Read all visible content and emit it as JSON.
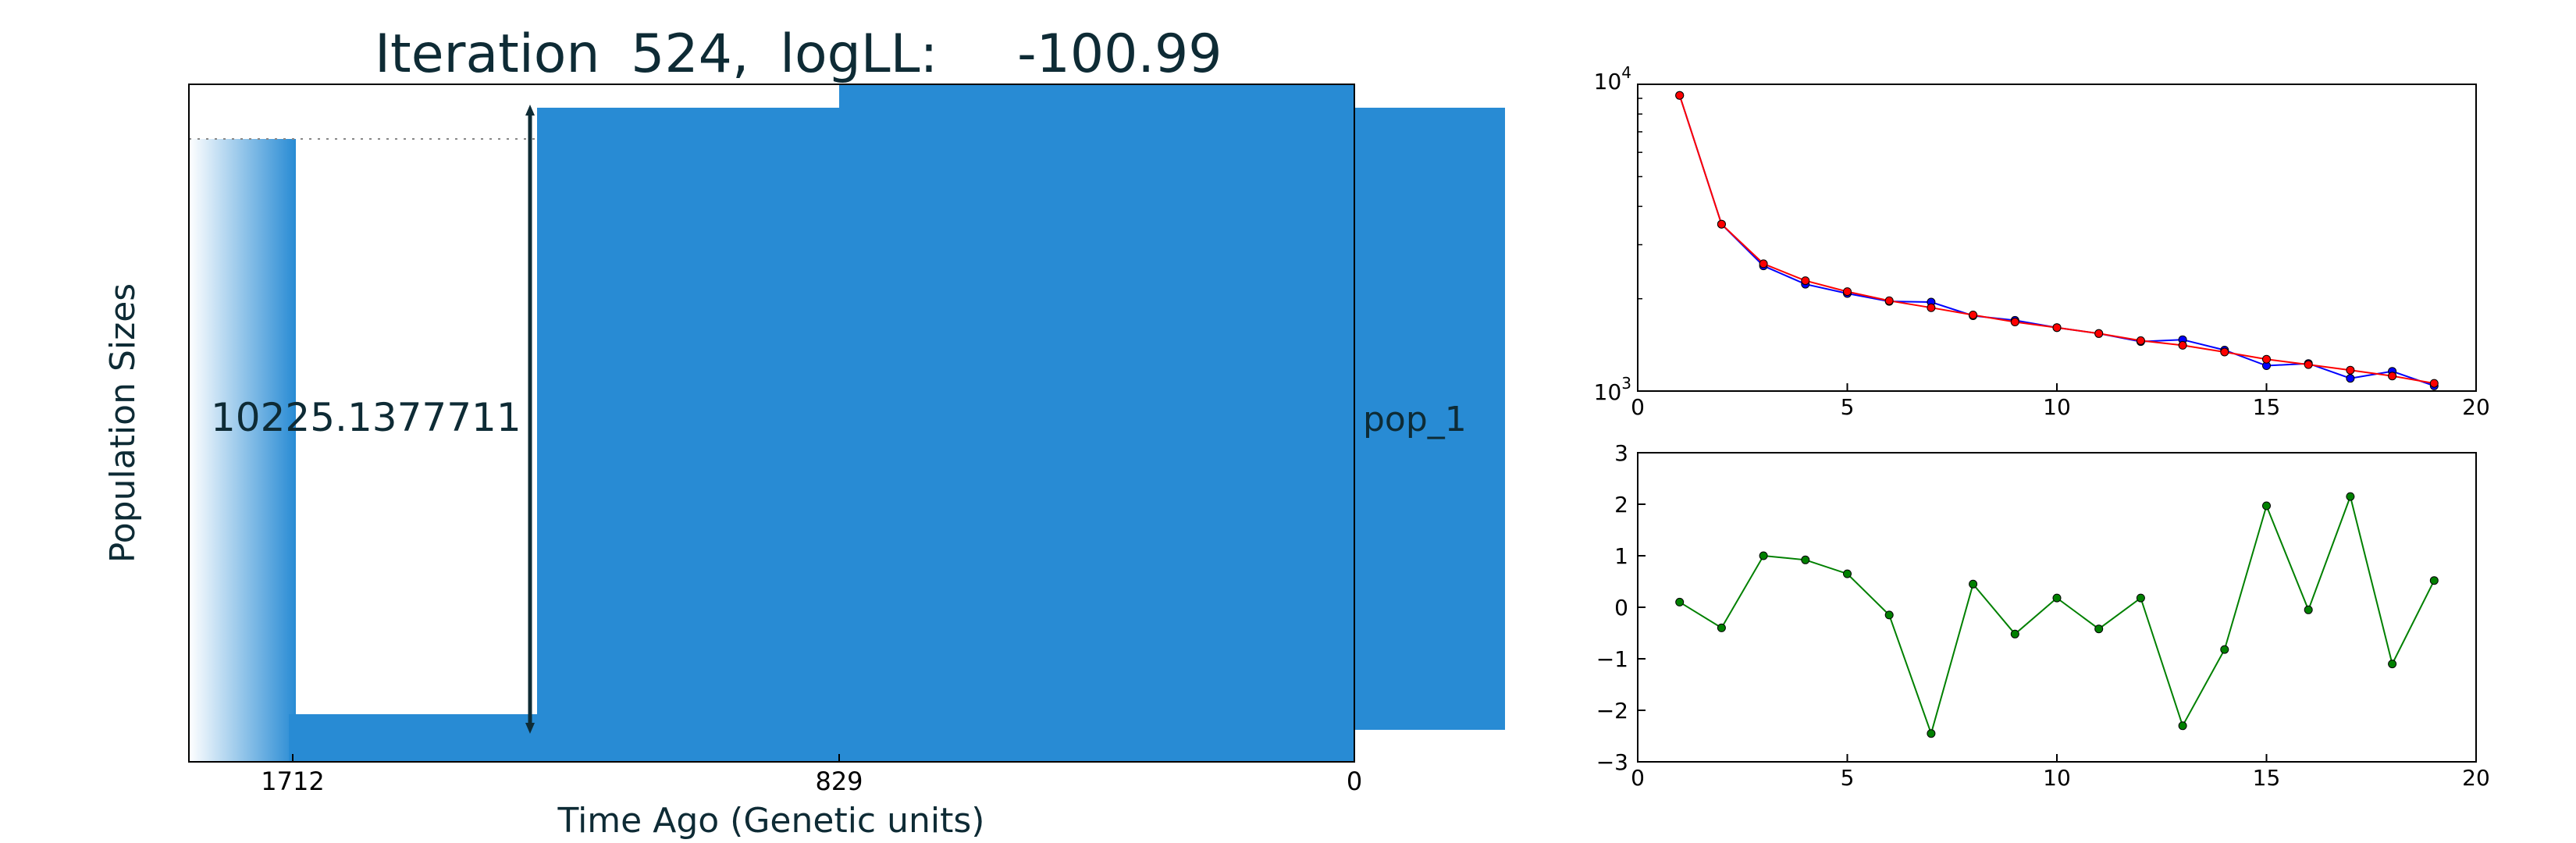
{
  "chart_data": [
    {
      "type": "area",
      "title_prefix": "Iteration",
      "iteration": "524",
      "loglik_label": "logLL:",
      "loglik": "-100.99",
      "xlabel": "Time Ago (Genetic units)",
      "ylabel": "Population Sizes",
      "x_ticks": [
        "1712",
        "829",
        "0"
      ],
      "size_annotation": "10225.1377711",
      "population_label": "pop_1",
      "color": "#288bd4"
    },
    {
      "type": "line",
      "yscale": "log",
      "xlim": [
        0,
        20
      ],
      "ylim": [
        1000,
        10000
      ],
      "x_ticks": [
        "0",
        "5",
        "10",
        "15",
        "20"
      ],
      "y_tick_base": "10",
      "y_ticks": [
        {
          "value": 1000,
          "exp": "3"
        },
        {
          "value": 10000,
          "exp": "4"
        }
      ],
      "series": [
        {
          "color": "#0000ff",
          "x": [
            1,
            2,
            3,
            4,
            5,
            6,
            7,
            8,
            9,
            10,
            11,
            12,
            13,
            14,
            15,
            16,
            17,
            18,
            19
          ],
          "y": [
            9200,
            3500,
            2560,
            2230,
            2080,
            1960,
            1950,
            1760,
            1700,
            1610,
            1540,
            1450,
            1470,
            1360,
            1210,
            1230,
            1100,
            1160,
            1040
          ]
        },
        {
          "color": "#ff0000",
          "x": [
            1,
            2,
            3,
            4,
            5,
            6,
            7,
            8,
            9,
            10,
            11,
            12,
            13,
            14,
            15,
            16,
            17,
            18,
            19
          ],
          "y": [
            9200,
            3500,
            2600,
            2290,
            2110,
            1970,
            1870,
            1770,
            1680,
            1610,
            1540,
            1460,
            1410,
            1340,
            1270,
            1220,
            1170,
            1120,
            1060
          ]
        }
      ]
    },
    {
      "type": "line",
      "xlim": [
        0,
        20
      ],
      "ylim": [
        -3,
        3
      ],
      "x_ticks": [
        "0",
        "5",
        "10",
        "15",
        "20"
      ],
      "y_ticks": [
        "3",
        "2",
        "1",
        "0",
        "−1",
        "−2",
        "−3"
      ],
      "series": [
        {
          "color": "#008000",
          "x": [
            1,
            2,
            3,
            4,
            5,
            6,
            7,
            8,
            9,
            10,
            11,
            12,
            13,
            14,
            15,
            16,
            17,
            18,
            19
          ],
          "y": [
            0.1,
            -0.4,
            1.0,
            0.92,
            0.65,
            -0.15,
            -2.45,
            0.45,
            -0.52,
            0.18,
            -0.42,
            0.18,
            -2.3,
            -0.82,
            1.97,
            -0.05,
            2.15,
            -1.1,
            0.52
          ]
        }
      ]
    }
  ]
}
